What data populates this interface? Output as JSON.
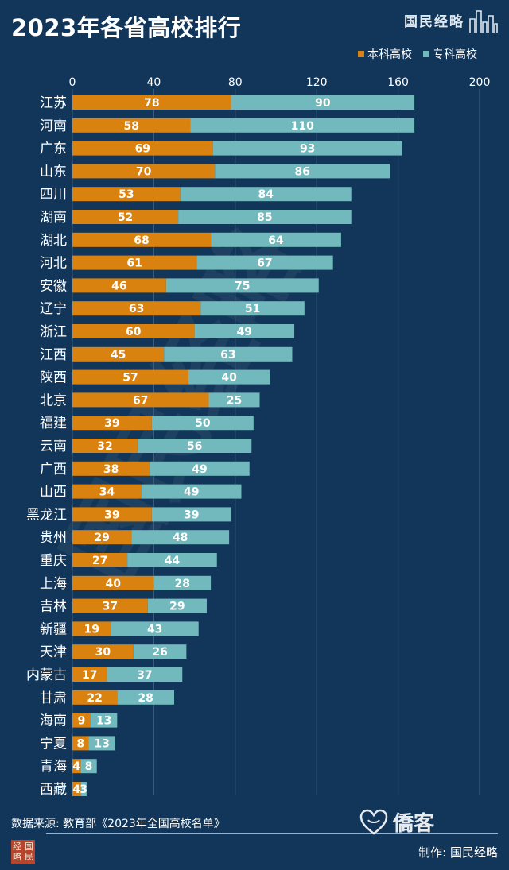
{
  "header": {
    "title": "2023年各省高校排行",
    "brand": "国民经略"
  },
  "legend": {
    "items": [
      {
        "label": "本科高校",
        "color": "#d9820f"
      },
      {
        "label": "专科高校",
        "color": "#72b9bd"
      }
    ]
  },
  "footer": {
    "source": "数据来源: 教育部《2023年全国高校名单》",
    "maker": "制作: 国民经略",
    "seal_chars": [
      "经",
      "国",
      "略",
      "民"
    ],
    "logo_text": "僑客"
  },
  "watermark": "国民经略",
  "chart_data": {
    "type": "bar",
    "orientation": "horizontal",
    "stacked": true,
    "title": "2023年各省高校排行",
    "xlim": [
      0,
      200
    ],
    "xticks": [
      0,
      40,
      80,
      120,
      160,
      200
    ],
    "grid": true,
    "legend_position": "top-right",
    "categories": [
      "江苏",
      "河南",
      "广东",
      "山东",
      "四川",
      "湖南",
      "湖北",
      "河北",
      "安徽",
      "辽宁",
      "浙江",
      "江西",
      "陕西",
      "北京",
      "福建",
      "云南",
      "广西",
      "山西",
      "黑龙江",
      "贵州",
      "重庆",
      "上海",
      "吉林",
      "新疆",
      "天津",
      "内蒙古",
      "甘肃",
      "海南",
      "宁夏",
      "青海",
      "西藏"
    ],
    "series": [
      {
        "name": "本科高校",
        "color": "#d9820f",
        "values": [
          78,
          58,
          69,
          70,
          53,
          52,
          68,
          61,
          46,
          63,
          60,
          45,
          57,
          67,
          39,
          32,
          38,
          34,
          39,
          29,
          27,
          40,
          37,
          19,
          30,
          17,
          22,
          9,
          8,
          4,
          4
        ]
      },
      {
        "name": "专科高校",
        "color": "#72b9bd",
        "values": [
          90,
          110,
          93,
          86,
          84,
          85,
          64,
          67,
          75,
          51,
          49,
          63,
          40,
          25,
          50,
          56,
          49,
          49,
          39,
          48,
          44,
          28,
          29,
          43,
          26,
          37,
          28,
          13,
          13,
          8,
          3
        ]
      }
    ]
  }
}
